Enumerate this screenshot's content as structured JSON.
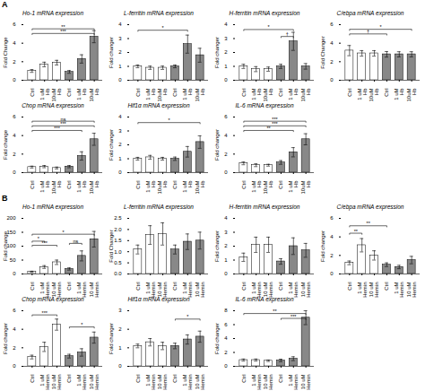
{
  "chart_data": [
    {
      "type": "bar",
      "title": "Ho-1 mRNA expression",
      "ylabel": "Fold Change",
      "ylim": [
        0,
        6
      ],
      "yticks": [
        0,
        2,
        4,
        6
      ],
      "categories": [
        "Ctrl",
        "1 uM\nHb",
        "10uM\nHb",
        "Ctrl",
        "1 uM\nHb",
        "10uM\nHb"
      ],
      "values": [
        1.0,
        1.7,
        1.9,
        0.9,
        2.3,
        4.7
      ],
      "errors": [
        0.15,
        0.25,
        0.25,
        0.15,
        0.45,
        0.65
      ],
      "colors": [
        "white",
        "white",
        "white",
        "#888888",
        "#888888",
        "#888888"
      ],
      "grid": false,
      "annotations": [
        {
          "text": "A"
        },
        {
          "text": "**",
          "x1": 0,
          "x2": 5,
          "y": 5.55
        },
        {
          "text": "***",
          "x1": 0,
          "x2": 5,
          "y": 5.05
        }
      ]
    },
    {
      "type": "bar",
      "title": "L-ferritin mRNA expression",
      "ylabel": "Fold changer",
      "ylim": [
        0,
        4
      ],
      "yticks": [
        0,
        1,
        2,
        3,
        4
      ],
      "categories": [
        "Ctrl",
        "1 uM\nHb",
        "10uM\nHb",
        "Ctrl",
        "1 uM\nHb",
        "10uM\nHb"
      ],
      "values": [
        1.0,
        0.9,
        0.9,
        1.0,
        2.6,
        1.8
      ],
      "errors": [
        0.1,
        0.12,
        0.12,
        0.1,
        0.65,
        0.5
      ],
      "colors": [
        "white",
        "white",
        "white",
        "#888888",
        "#888888",
        "#888888"
      ],
      "grid": false,
      "annotations": [
        {
          "text": "*",
          "x1": 0,
          "x2": 4,
          "y": 3.6
        }
      ]
    },
    {
      "type": "bar",
      "title": "H-ferritin mRNA expression",
      "ylabel": "Fold changer",
      "ylim": [
        0,
        4
      ],
      "yticks": [
        0,
        1,
        2,
        3,
        4
      ],
      "categories": [
        "Ctrl",
        "1 uM\nHb",
        "10uM\nHb",
        "Ctrl",
        "1 uM\nHb",
        "10uM\nHb"
      ],
      "values": [
        1.0,
        0.8,
        0.8,
        1.0,
        2.8,
        1.0
      ],
      "errors": [
        0.15,
        0.18,
        0.15,
        0.15,
        0.65,
        0.2
      ],
      "colors": [
        "white",
        "white",
        "white",
        "#888888",
        "#888888",
        "#888888"
      ],
      "grid": false,
      "annotations": [
        {
          "text": "*",
          "x1": 0,
          "x2": 4,
          "y": 3.65
        },
        {
          "text": "†",
          "x1": 3,
          "x2": 4,
          "y": 3.15
        }
      ]
    },
    {
      "type": "bar",
      "title": "C/ebpa mRNA expression",
      "ylabel": "Fold Changer",
      "ylim": [
        0,
        6
      ],
      "yticks": [
        0,
        2,
        4,
        6
      ],
      "categories": [
        "Ctrl",
        "1 uM\nHb",
        "10uM\nHb",
        "Ctrl",
        "1 uM\nHb",
        "10uM\nHb"
      ],
      "values": [
        3.2,
        2.9,
        2.9,
        2.8,
        2.8,
        2.8
      ],
      "errors": [
        0.55,
        0.3,
        0.3,
        0.3,
        0.28,
        0.28
      ],
      "colors": [
        "white",
        "white",
        "white",
        "#888888",
        "#888888",
        "#888888"
      ],
      "grid": false,
      "annotations": [
        {
          "text": "†",
          "x1": 0,
          "x2": 3,
          "y": 5.0
        },
        {
          "text": "*",
          "x1": 0,
          "x2": 5,
          "y": 5.5
        }
      ]
    },
    {
      "type": "bar",
      "title": "Chop mRNA expression",
      "ylabel": "Fold change",
      "ylim": [
        0,
        6
      ],
      "yticks": [
        0,
        2,
        4,
        6
      ],
      "categories": [
        "Ctrl",
        "1 uM\nHb",
        "10uM\nHb",
        "Ctrl",
        "1 uM\nHb",
        "10uM\nHb"
      ],
      "values": [
        0.6,
        0.65,
        0.5,
        0.65,
        1.8,
        3.6
      ],
      "errors": [
        0.1,
        0.12,
        0.1,
        0.12,
        0.45,
        0.65
      ],
      "colors": [
        "white",
        "white",
        "white",
        "#888888",
        "#888888",
        "#888888"
      ],
      "grid": false,
      "annotations": [
        {
          "text": "ns",
          "x1": 0,
          "x2": 5,
          "y": 5.55
        },
        {
          "text": "***",
          "x1": 0,
          "x2": 5,
          "y": 5.05
        },
        {
          "text": "***",
          "x1": 0,
          "x2": 4,
          "y": 4.55
        }
      ]
    },
    {
      "type": "bar",
      "title": "Hif1α mRNA expression",
      "ylabel": "Fold changer",
      "ylim": [
        0,
        4
      ],
      "yticks": [
        0,
        1,
        2,
        3,
        4
      ],
      "categories": [
        "Ctrl",
        "1 uM\nHb",
        "10uM\nHb",
        "Ctrl",
        "1 uM\nHb",
        "10uM\nHb"
      ],
      "values": [
        1.0,
        1.1,
        1.0,
        1.0,
        1.5,
        2.2
      ],
      "errors": [
        0.1,
        0.14,
        0.1,
        0.12,
        0.38,
        0.45
      ],
      "colors": [
        "white",
        "white",
        "white",
        "#888888",
        "#888888",
        "#888888"
      ],
      "grid": false,
      "annotations": [
        {
          "text": "*",
          "x1": 0,
          "x2": 5,
          "y": 3.6
        }
      ]
    },
    {
      "type": "bar",
      "title": "IL-6 mRNA expression",
      "ylabel": "Fold changer",
      "ylim": [
        0,
        6
      ],
      "yticks": [
        0,
        2,
        4,
        6
      ],
      "categories": [
        "Ctrl",
        "1 uM\nHb",
        "10uM\nHb",
        "Ctrl",
        "1 uM\nHb",
        "10uM\nHb"
      ],
      "values": [
        1.0,
        0.8,
        0.8,
        1.1,
        2.2,
        3.6
      ],
      "errors": [
        0.15,
        0.15,
        0.1,
        0.2,
        0.5,
        0.6
      ],
      "colors": [
        "white",
        "white",
        "white",
        "#888888",
        "#888888",
        "#888888"
      ],
      "grid": false,
      "annotations": [
        {
          "text": "***",
          "x1": 0,
          "x2": 5,
          "y": 5.55
        },
        {
          "text": "***",
          "x1": 0,
          "x2": 5,
          "y": 5.05
        },
        {
          "text": "**",
          "x1": 0,
          "x2": 4,
          "y": 4.55
        }
      ]
    },
    {
      "type": "bar",
      "title": "Ho-1 mRNA expression",
      "ylabel": "Fold change",
      "ylim": [
        0,
        200
      ],
      "yticks": [
        0,
        50,
        100,
        150,
        200
      ],
      "categories": [
        "Ctrl",
        "1 uM\nHemin",
        "10 uM\nHemin",
        "Ctrl",
        "1 uM\nHemin",
        "10 uM\nHemin"
      ],
      "values": [
        8,
        25,
        42,
        18,
        65,
        125
      ],
      "errors": [
        2,
        5,
        8,
        4,
        18,
        28
      ],
      "colors": [
        "white",
        "white",
        "white",
        "#888888",
        "#888888",
        "#888888"
      ],
      "grid": false,
      "annotations": [
        {
          "text": "B"
        },
        {
          "text": "*",
          "x1": 0,
          "x2": 5,
          "y": 143
        },
        {
          "text": "*",
          "x1": 0,
          "x2": 1,
          "y": 118
        },
        {
          "text": "***",
          "x1": 0,
          "x2": 2,
          "y": 103
        },
        {
          "text": "ns",
          "x1": 3,
          "x2": 4,
          "y": 110
        }
      ]
    },
    {
      "type": "bar",
      "title": "L-ferritin mRNA expression",
      "ylabel": "Fold Changer",
      "ylim": [
        0,
        2.5
      ],
      "yticks": [
        {
          "value": 0,
          "label": "0.0"
        },
        0.5,
        {
          "value": 1.0,
          "label": "1.0"
        },
        1.5,
        {
          "value": 2.0,
          "label": "2.0"
        },
        2.5
      ],
      "categories": [
        "Ctrl",
        "1 uM\nHemin",
        "10 uM\nHemin",
        "Ctrl",
        "1 uM\nHemin",
        "10 uM\nHemin"
      ],
      "values": [
        1.1,
        1.75,
        1.8,
        1.1,
        1.45,
        1.5
      ],
      "errors": [
        0.2,
        0.42,
        0.5,
        0.2,
        0.35,
        0.38
      ],
      "colors": [
        "white",
        "white",
        "white",
        "#888888",
        "#888888",
        "#888888"
      ],
      "grid": false
    },
    {
      "type": "bar",
      "title": "H-ferritin mRNA expression",
      "ylabel": "Fold changer",
      "ylim": [
        0,
        4
      ],
      "yticks": [
        0,
        1,
        2,
        3,
        4
      ],
      "categories": [
        "Ctrl",
        "1 uM\nHemin",
        "10 uM\nHemin",
        "Ctrl",
        "1 uM\nHemin",
        "10 uM\nHemin"
      ],
      "values": [
        1.2,
        2.1,
        2.1,
        0.9,
        2.0,
        1.7
      ],
      "errors": [
        0.3,
        0.55,
        0.55,
        0.2,
        0.6,
        0.5
      ],
      "colors": [
        "white",
        "white",
        "white",
        "#888888",
        "#888888",
        "#888888"
      ],
      "grid": false
    },
    {
      "type": "bar",
      "title": "C/ebpa mRNA expression",
      "ylabel": "Fold changer",
      "ylim": [
        0,
        6
      ],
      "yticks": [
        0,
        2,
        4,
        6
      ],
      "categories": [
        "Ctrl",
        "1 uM\nHemin",
        "10 uM\nHemin",
        "Ctrl",
        "1 uM\nHemin",
        "10 uM\nHemin"
      ],
      "values": [
        1.2,
        3.1,
        2.0,
        1.0,
        0.75,
        1.5
      ],
      "errors": [
        0.2,
        0.72,
        0.5,
        0.2,
        0.18,
        0.4
      ],
      "colors": [
        "white",
        "white",
        "white",
        "#888888",
        "#888888",
        "#888888"
      ],
      "grid": false,
      "annotations": [
        {
          "text": "**",
          "x1": 0,
          "x2": 3,
          "y": 5.2
        },
        {
          "text": "**",
          "x1": 0,
          "x2": 1,
          "y": 4.4
        }
      ]
    },
    {
      "type": "bar",
      "title": "Chop mRNA expression",
      "ylabel": "Fold changer",
      "ylim": [
        0,
        6
      ],
      "yticks": [
        0,
        2,
        4,
        6
      ],
      "categories": [
        "Ctrl",
        "1 uM\nHemin",
        "10 uM\nHemin",
        "Ctrl",
        "1 uM\nHemin",
        "10 uM\nHemin"
      ],
      "values": [
        1.0,
        2.1,
        4.5,
        1.1,
        1.5,
        3.1
      ],
      "errors": [
        0.2,
        0.5,
        0.6,
        0.2,
        0.4,
        0.6
      ],
      "colors": [
        "white",
        "white",
        "white",
        "#888888",
        "#888888",
        "#888888"
      ],
      "grid": false,
      "annotations": [
        {
          "text": "***",
          "x1": 0,
          "x2": 2,
          "y": 5.55
        },
        {
          "text": "*",
          "x1": 3,
          "x2": 5,
          "y": 4.25
        }
      ]
    },
    {
      "type": "bar",
      "title": "Hif1α mRNA expression",
      "ylabel": "Fold changer",
      "ylim": [
        0,
        3
      ],
      "yticks": [
        0,
        1,
        2,
        3
      ],
      "categories": [
        "Ctrl",
        "1 uM\nHemin",
        "10 uM\nHemin",
        "Ctrl",
        "1 uM\nHemin",
        "10 uM\nHemin"
      ],
      "values": [
        1.1,
        1.3,
        1.1,
        1.1,
        1.45,
        1.6
      ],
      "errors": [
        0.1,
        0.2,
        0.2,
        0.15,
        0.25,
        0.3
      ],
      "colors": [
        "white",
        "white",
        "white",
        "#888888",
        "#888888",
        "#888888"
      ],
      "grid": false,
      "annotations": [
        {
          "text": "*",
          "x1": 3,
          "x2": 5,
          "y": 2.55
        }
      ]
    },
    {
      "type": "bar",
      "title": "IL-6 mRNA expression",
      "ylabel": "Fold changer",
      "ylim": [
        0,
        8
      ],
      "yticks": [
        0,
        2,
        4,
        6,
        8
      ],
      "categories": [
        "Ctrl",
        "1 uM\nHemin",
        "10 uM\nHemin",
        "Ctrl",
        "1 uM\nHemin",
        "10 uM\nHemin"
      ],
      "values": [
        0.9,
        0.9,
        0.8,
        0.85,
        1.1,
        7.0
      ],
      "errors": [
        0.15,
        0.15,
        0.1,
        0.18,
        0.28,
        1.0
      ],
      "colors": [
        "white",
        "white",
        "white",
        "#888888",
        "#888888",
        "#888888"
      ],
      "grid": false,
      "annotations": [
        {
          "text": "**",
          "x1": 0,
          "x2": 5,
          "y": 7.6
        },
        {
          "text": "***",
          "x1": 3,
          "x2": 5,
          "y": 6.9
        }
      ]
    }
  ]
}
